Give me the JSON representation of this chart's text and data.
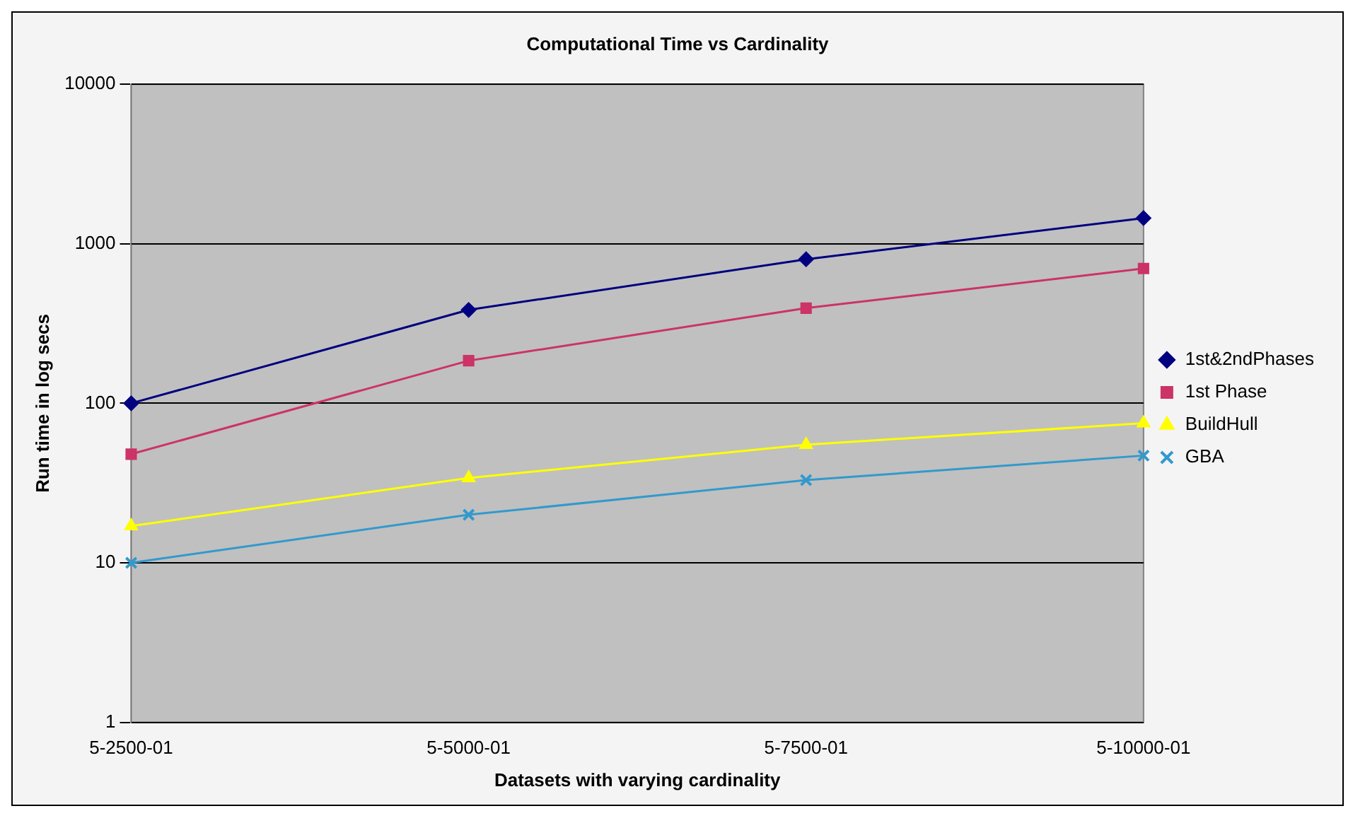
{
  "chart_data": {
    "type": "line",
    "title": "Computational Time vs Cardinality",
    "xlabel": "Datasets with varying cardinality",
    "ylabel": "Run time in log secs",
    "categories": [
      "5-2500-01",
      "5-5000-01",
      "5-7500-01",
      "5-10000-01"
    ],
    "series": [
      {
        "name": "1st&2ndPhases",
        "color": "#000080",
        "marker": "diamond",
        "values": [
          100,
          385,
          800,
          1450
        ]
      },
      {
        "name": "1st Phase",
        "color": "#cc3366",
        "marker": "square",
        "values": [
          48,
          185,
          395,
          700
        ]
      },
      {
        "name": "BuildHull",
        "color": "#ffff00",
        "marker": "triangle",
        "values": [
          17,
          34,
          55,
          75
        ]
      },
      {
        "name": "GBA",
        "color": "#3399cc",
        "marker": "cross",
        "values": [
          10,
          20,
          33,
          47
        ]
      }
    ],
    "log": true,
    "ylim": [
      1,
      10000
    ],
    "yticks": [
      1,
      10,
      100,
      1000,
      10000
    ],
    "grid": "y",
    "legend": "right",
    "line_style": "solid"
  }
}
